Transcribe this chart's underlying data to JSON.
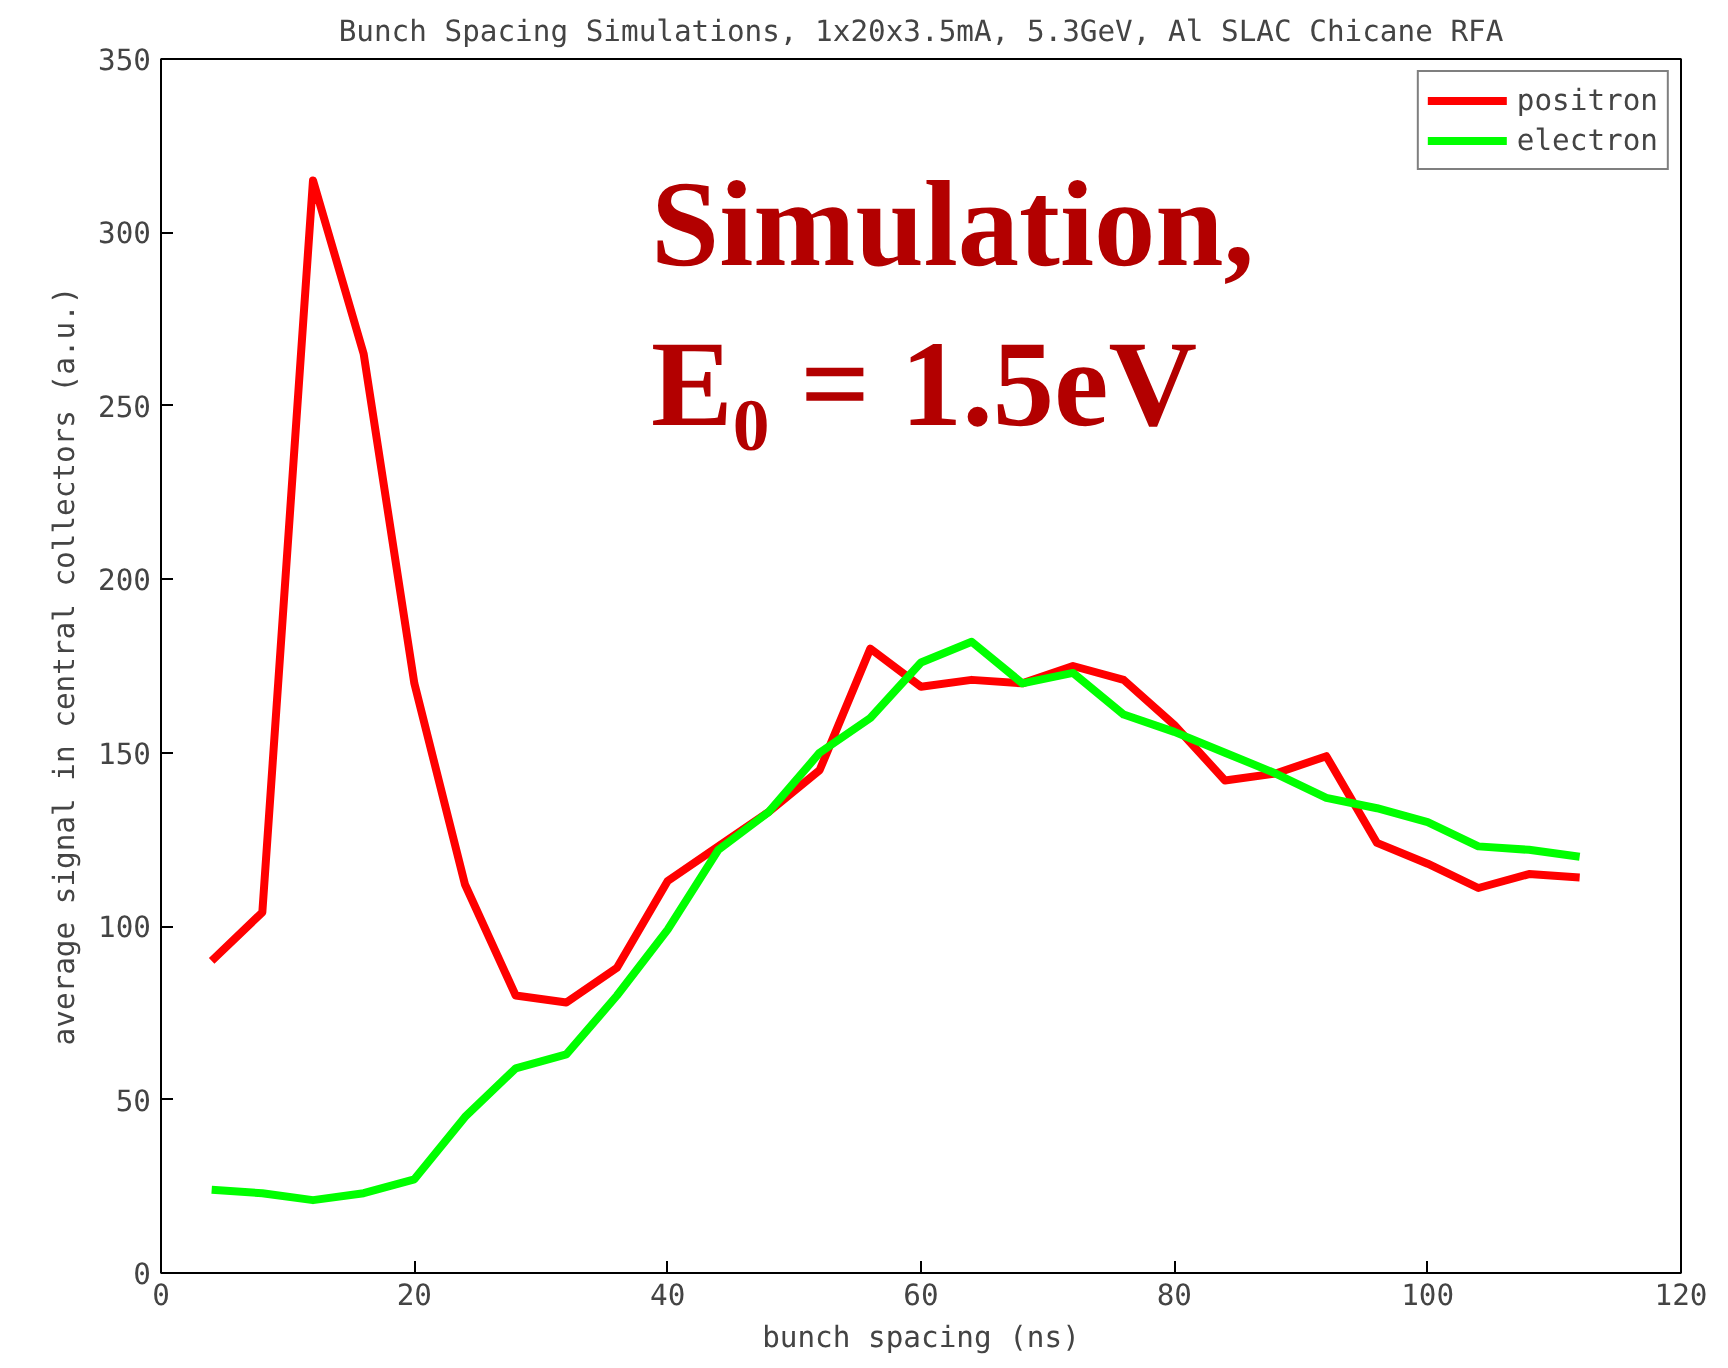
{
  "chart_data": {
    "type": "line",
    "title": "Bunch Spacing Simulations, 1x20x3.5mA, 5.3GeV, Al SLAC Chicane RFA",
    "xlabel": "bunch spacing (ns)",
    "ylabel": "average signal in central collectors (a.u.)",
    "x": [
      4,
      8,
      12,
      16,
      20,
      24,
      28,
      32,
      36,
      40,
      44,
      48,
      52,
      56,
      60,
      64,
      68,
      72,
      76,
      80,
      84,
      88,
      92,
      96,
      100,
      104,
      108,
      112
    ],
    "series": [
      {
        "name": "positron",
        "color": "#ff0000",
        "values": [
          90,
          104,
          315,
          265,
          170,
          112,
          80,
          78,
          88,
          113,
          123,
          133,
          145,
          180,
          169,
          171,
          170,
          175,
          171,
          158,
          142,
          144,
          149,
          124,
          118,
          111,
          115,
          114
        ]
      },
      {
        "name": "electron",
        "color": "#00ff00",
        "values": [
          24,
          23,
          21,
          23,
          27,
          45,
          59,
          63,
          80,
          99,
          122,
          133,
          150,
          160,
          176,
          182,
          170,
          173,
          161,
          156,
          150,
          144,
          137,
          134,
          130,
          123,
          122,
          120
        ]
      }
    ],
    "xlim": [
      0,
      120
    ],
    "ylim": [
      0,
      350
    ],
    "xticks": [
      0,
      20,
      40,
      60,
      80,
      100,
      120
    ],
    "yticks": [
      0,
      50,
      100,
      150,
      200,
      250,
      300,
      350
    ],
    "grid": false,
    "legend": "top right",
    "marker": "none",
    "line_style": "solid",
    "annotations": [
      "Simulation,",
      "E₀ = 1.5eV"
    ]
  }
}
